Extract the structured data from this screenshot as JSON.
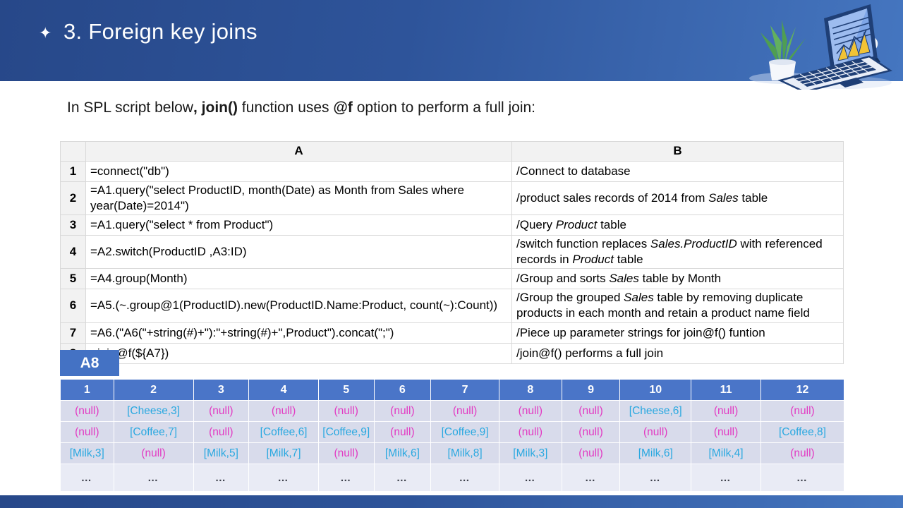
{
  "slide": {
    "title": "3. Foreign key joins",
    "title_icon": "sparkle-icon"
  },
  "subtitle": {
    "segments": [
      {
        "text": "In SPL script below",
        "bold": false
      },
      {
        "text": ", join()",
        "bold": true
      },
      {
        "text": " function uses ",
        "bold": false
      },
      {
        "text": "@f",
        "bold": true
      },
      {
        "text": " option to perform a full join:",
        "bold": false
      }
    ]
  },
  "spreadsheet": {
    "corner": "",
    "columns": [
      "A",
      "B"
    ],
    "rows": [
      {
        "num": "1",
        "a": "=connect(\"db\")",
        "b": [
          {
            "t": "/Connect to database"
          }
        ]
      },
      {
        "num": "2",
        "a": "=A1.query(\"select ProductID, month(Date) as Month from Sales where year(Date)=2014\")",
        "b": [
          {
            "t": "/product sales records of 2014 from "
          },
          {
            "t": "Sales",
            "i": true
          },
          {
            "t": " table"
          }
        ]
      },
      {
        "num": "3",
        "a": "=A1.query(\"select * from Product\")",
        "b": [
          {
            "t": "/Query "
          },
          {
            "t": "Product",
            "i": true
          },
          {
            "t": " table"
          }
        ]
      },
      {
        "num": "4",
        "a": "=A2.switch(ProductID ,A3:ID)",
        "b": [
          {
            "t": "/switch function replaces "
          },
          {
            "t": "Sales.ProductID",
            "i": true
          },
          {
            "t": " with referenced records in "
          },
          {
            "t": "Product",
            "i": true
          },
          {
            "t": " table"
          }
        ]
      },
      {
        "num": "5",
        "a": "=A4.group(Month)",
        "b": [
          {
            "t": "/Group and sorts "
          },
          {
            "t": "Sales",
            "i": true
          },
          {
            "t": " table by Month"
          }
        ]
      },
      {
        "num": "6",
        "a": "=A5.(~.group@1(ProductID).new(ProductID.Name:Product, count(~):Count))",
        "b": [
          {
            "t": "/Group the grouped "
          },
          {
            "t": "Sales",
            "i": true
          },
          {
            "t": " table  by removing duplicate products in each month and retain a product name field"
          }
        ]
      },
      {
        "num": "7",
        "a": "=A6.(\"A6(\"+string(#)+\"):\"+string(#)+\",Product\").concat(\";\")",
        "b": [
          {
            "t": "/Piece up parameter strings for join@f() funtion"
          }
        ]
      },
      {
        "num": "8",
        "a": "=join@f(${A7})",
        "b": [
          {
            "t": "/join@f() performs a full join"
          }
        ]
      }
    ]
  },
  "a8_badge": "A8",
  "result_table": {
    "columns": [
      "1",
      "2",
      "3",
      "4",
      "5",
      "6",
      "7",
      "8",
      "9",
      "10",
      "11",
      "12"
    ],
    "rows": [
      [
        "(null)",
        "[Cheese,3]",
        "(null)",
        "(null)",
        "(null)",
        "(null)",
        "(null)",
        "(null)",
        "(null)",
        "[Cheese,6]",
        "(null)",
        "(null)"
      ],
      [
        "(null)",
        "[Coffee,7]",
        "(null)",
        "[Coffee,6]",
        "[Coffee,9]",
        "(null)",
        "[Coffee,9]",
        "(null)",
        "(null)",
        "(null)",
        "(null)",
        "[Coffee,8]"
      ],
      [
        "[Milk,3]",
        "(null)",
        "[Milk,5]",
        "[Milk,7]",
        "(null)",
        "[Milk,6]",
        "[Milk,8]",
        "[Milk,3]",
        "(null)",
        "[Milk,6]",
        "[Milk,4]",
        "(null)"
      ],
      [
        "…",
        "…",
        "…",
        "…",
        "…",
        "…",
        "…",
        "…",
        "…",
        "…",
        "…",
        "…"
      ]
    ]
  },
  "colors": {
    "header_gradient_start": "#274889",
    "header_gradient_end": "#4576c0",
    "badge_blue": "#4472c4",
    "result_header_bg": "#4a75c8",
    "result_row_bg": "#d8dbeb",
    "result_dots_row_bg": "#e9ebf5",
    "null_text": "#e23bc3",
    "value_text": "#29a8e0",
    "sheet_header_bg": "#f2f2f2"
  }
}
